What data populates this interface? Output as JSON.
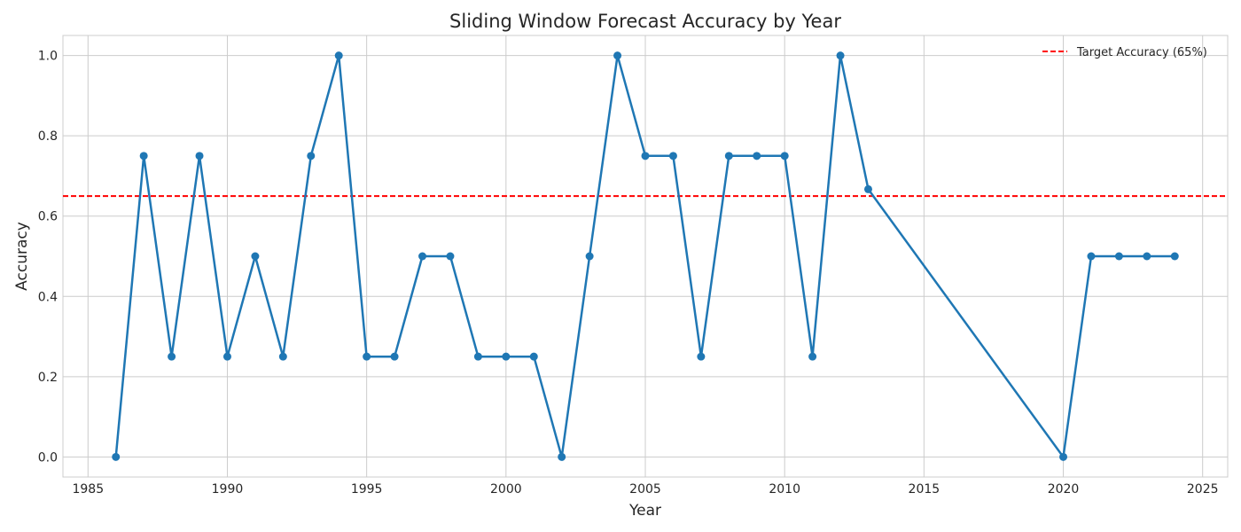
{
  "chart_data": {
    "type": "line",
    "title": "Sliding Window Forecast Accuracy by Year",
    "xlabel": "Year",
    "ylabel": "Accuracy",
    "xlim": [
      1984.1,
      2025.9
    ],
    "ylim": [
      -0.05,
      1.05
    ],
    "xticks": [
      1985,
      1990,
      1995,
      2000,
      2005,
      2010,
      2015,
      2020,
      2025
    ],
    "yticks": [
      0.0,
      0.2,
      0.4,
      0.6,
      0.8,
      1.0
    ],
    "ytick_labels": [
      "0.0",
      "0.2",
      "0.4",
      "0.6",
      "0.8",
      "1.0"
    ],
    "grid": true,
    "legend_position": "top-right",
    "series": [
      {
        "color": "#1f77b4",
        "marker": "circle",
        "x": [
          1986,
          1987,
          1988,
          1989,
          1990,
          1991,
          1992,
          1993,
          1994,
          1995,
          1996,
          1997,
          1998,
          1999,
          2000,
          2001,
          2002,
          2003,
          2004,
          2005,
          2006,
          2007,
          2008,
          2009,
          2010,
          2011,
          2012,
          2013,
          2020,
          2021,
          2022,
          2023,
          2024
        ],
        "y": [
          0.0,
          0.75,
          0.25,
          0.75,
          0.25,
          0.5,
          0.25,
          0.75,
          1.0,
          0.25,
          0.25,
          0.5,
          0.5,
          0.25,
          0.25,
          0.25,
          0.0,
          0.5,
          1.0,
          0.75,
          0.75,
          0.25,
          0.75,
          0.75,
          0.75,
          0.25,
          1.0,
          0.667,
          0.0,
          0.5,
          0.5,
          0.5,
          0.5
        ]
      }
    ],
    "reference_lines": [
      {
        "name": "Target Accuracy (65%)",
        "y": 0.65,
        "color": "#ff0000",
        "style": "dashed"
      }
    ]
  }
}
